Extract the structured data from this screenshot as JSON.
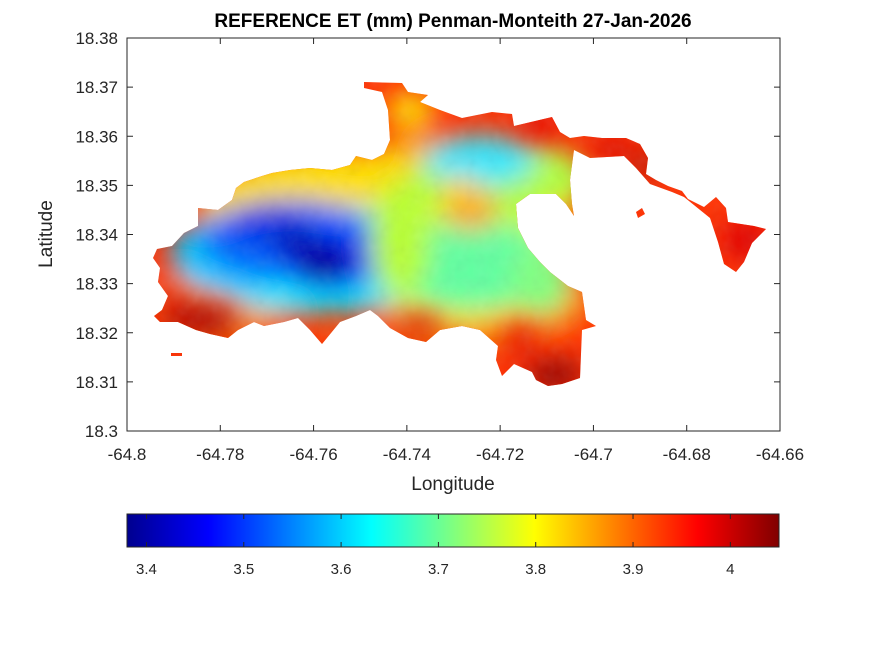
{
  "chart_data": {
    "type": "heatmap",
    "title": "REFERENCE ET (mm) Penman-Monteith 27-Jan-2026",
    "xlabel": "Longitude",
    "ylabel": "Latitude",
    "xlim": [
      -64.8,
      -64.66
    ],
    "ylim": [
      18.3,
      18.38
    ],
    "x_ticks": [
      -64.8,
      -64.78,
      -64.76,
      -64.74,
      -64.72,
      -64.7,
      -64.68,
      -64.66
    ],
    "x_tick_labels": [
      "-64.8",
      "-64.78",
      "-64.76",
      "-64.74",
      "-64.72",
      "-64.7",
      "-64.68",
      "-64.66"
    ],
    "y_ticks": [
      18.3,
      18.31,
      18.32,
      18.33,
      18.34,
      18.35,
      18.36,
      18.37,
      18.38
    ],
    "y_tick_labels": [
      "18.3",
      "18.31",
      "18.32",
      "18.33",
      "18.34",
      "18.35",
      "18.36",
      "18.37",
      "18.38"
    ],
    "grid": false,
    "colormap": "jet",
    "colorbar": {
      "orientation": "horizontal",
      "placement": "bottom",
      "range": [
        3.38,
        4.05
      ],
      "ticks": [
        3.4,
        3.5,
        3.6,
        3.7,
        3.8,
        3.9,
        4.0
      ],
      "tick_labels": [
        "3.4",
        "3.5",
        "3.6",
        "3.7",
        "3.8",
        "3.9",
        "4"
      ]
    },
    "field": {
      "low_centers": [
        {
          "lon": -64.764,
          "lat": 18.337,
          "value": 3.38
        },
        {
          "lon": -64.756,
          "lat": 18.334,
          "value": 3.39
        },
        {
          "lon": -64.77,
          "lat": 18.342,
          "value": 3.47
        }
      ],
      "high_regions": [
        {
          "lon": -64.786,
          "lat": 18.322,
          "value": 4.03
        },
        {
          "lon": -64.71,
          "lat": 18.311,
          "value": 4.05
        },
        {
          "lon": -64.668,
          "lat": 18.336,
          "value": 4.02
        },
        {
          "lon": -64.7,
          "lat": 18.354,
          "value": 4.0
        }
      ]
    }
  }
}
